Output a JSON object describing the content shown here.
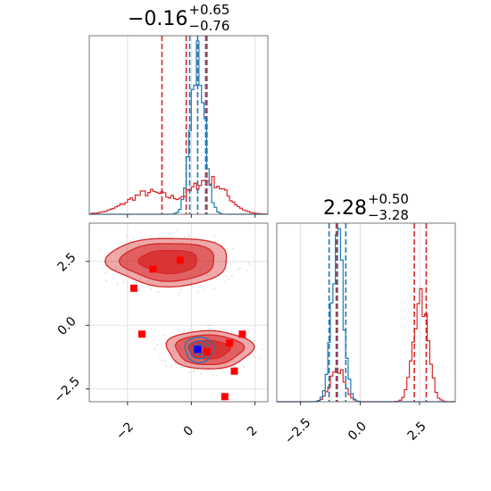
{
  "chart_data": [
    {
      "panel": "marginal-x",
      "type": "histogram",
      "title": {
        "value": "−0.16",
        "plus": "+0.65",
        "minus": "−0.76"
      },
      "xlim": [
        -3.2,
        2.4
      ],
      "x_ticks": [
        "−2",
        "0",
        "2"
      ],
      "series": [
        {
          "name": "",
          "color": "#d62728",
          "hist": {
            "center": [
              -1.3,
              0.55
            ],
            "sigma": [
              0.7,
              0.55
            ],
            "weight": [
              0.45,
              0.55
            ]
          },
          "quantile_lines": [
            -0.92,
            -0.16,
            0.49
          ]
        },
        {
          "name": "",
          "color": "#1f77b4",
          "hist": {
            "center": [
              0.2
            ],
            "sigma": [
              0.22
            ],
            "weight": [
              1.0
            ]
          },
          "quantile_lines": [
            -0.05,
            0.2,
            0.45
          ]
        }
      ]
    },
    {
      "panel": "joint",
      "type": "scatter",
      "xlim": [
        -3.2,
        2.4
      ],
      "ylim": [
        -3.0,
        4.0
      ],
      "x_ticks": [
        "−2",
        "0",
        "2"
      ],
      "y_ticks": [
        "−2.5",
        "0.0",
        "2.5"
      ],
      "contours": [
        {
          "color": "#d62728",
          "blobs": [
            {
              "cx": -0.7,
              "cy": 2.5,
              "rx": 1.9,
              "ry": 0.95
            },
            {
              "cx": 0.55,
              "cy": -0.95,
              "rx": 1.35,
              "ry": 0.75
            }
          ]
        },
        {
          "color": "#1f77b4",
          "blobs": [
            {
              "cx": 0.25,
              "cy": -0.95,
              "rx": 0.45,
              "ry": 0.5
            }
          ]
        }
      ],
      "markers_red": [
        [
          -1.2,
          2.2
        ],
        [
          -0.35,
          2.55
        ],
        [
          -1.8,
          1.45
        ],
        [
          -1.55,
          -0.35
        ],
        [
          1.2,
          -0.7
        ],
        [
          1.6,
          -0.35
        ],
        [
          0.5,
          -1.05
        ],
        [
          1.35,
          -1.8
        ],
        [
          1.05,
          -2.8
        ]
      ],
      "markers_blue": [
        [
          0.2,
          -0.95
        ]
      ]
    },
    {
      "panel": "marginal-y",
      "type": "histogram",
      "title": {
        "value": "2.28",
        "plus": "+0.50",
        "minus": "−3.28"
      },
      "xlim": [
        -3.5,
        4.0
      ],
      "x_ticks": [
        "−2.5",
        "0.0",
        "2.5"
      ],
      "series": [
        {
          "name": "",
          "color": "#d62728",
          "hist": {
            "center": [
              -0.95,
              2.55
            ],
            "sigma": [
              0.3,
              0.3
            ],
            "weight": [
              0.25,
              0.75
            ]
          },
          "quantile_lines": [
            -1.0,
            2.28,
            2.78
          ]
        },
        {
          "name": "",
          "color": "#1f77b4",
          "hist": {
            "center": [
              -0.95
            ],
            "sigma": [
              0.25
            ],
            "weight": [
              1.0
            ]
          },
          "quantile_lines": [
            -1.3,
            -0.95,
            -0.6
          ]
        }
      ]
    }
  ]
}
